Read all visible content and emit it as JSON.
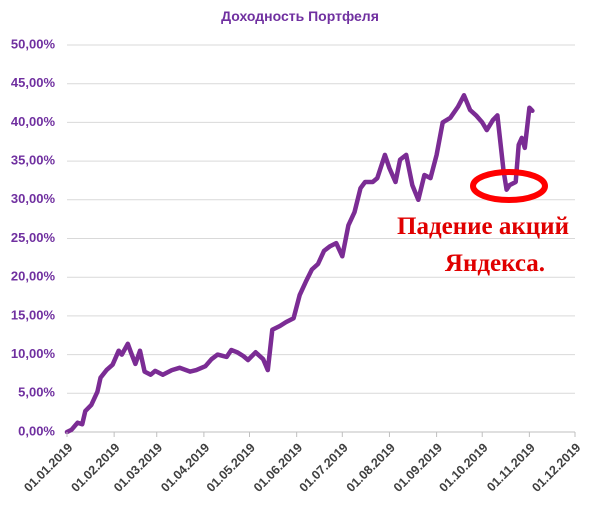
{
  "chart_data": {
    "type": "line",
    "title": "Доходность Портфеля",
    "x": [
      "01.01.2019",
      "04.01.2019",
      "08.01.2019",
      "11.01.2019",
      "13.01.2019",
      "17.01.2019",
      "21.01.2019",
      "23.01.2019",
      "27.01.2019",
      "31.01.2019",
      "04.02.2019",
      "06.02.2019",
      "10.02.2019",
      "12.02.2019",
      "15.02.2019",
      "18.02.2019",
      "21.02.2019",
      "25.02.2019",
      "28.02.2019",
      "05.03.2019",
      "11.03.2019",
      "16.03.2019",
      "23.03.2019",
      "27.03.2019",
      "02.04.2019",
      "06.04.2019",
      "10.04.2019",
      "16.04.2019",
      "19.04.2019",
      "23.04.2019",
      "27.04.2019",
      "30.04.2019",
      "05.05.2019",
      "10.05.2019",
      "13.05.2019",
      "16.05.2019",
      "21.05.2019",
      "25.05.2019",
      "30.05.2019",
      "03.06.2019",
      "07.06.2019",
      "11.06.2019",
      "15.06.2019",
      "19.06.2019",
      "23.06.2019",
      "27.06.2019",
      "01.07.2019",
      "05.07.2019",
      "09.07.2019",
      "13.07.2019",
      "16.07.2019",
      "21.07.2019",
      "24.07.2019",
      "29.07.2019",
      "01.08.2019",
      "05.08.2019",
      "08.08.2019",
      "12.08.2019",
      "16.08.2019",
      "20.08.2019",
      "24.08.2019",
      "28.08.2019",
      "01.09.2019",
      "05.09.2019",
      "10.09.2019",
      "15.09.2019",
      "19.09.2019",
      "23.09.2019",
      "27.09.2019",
      "01.10.2019",
      "04.10.2019",
      "08.10.2019",
      "11.10.2019",
      "15.10.2019",
      "17.10.2019",
      "19.10.2019",
      "23.10.2019",
      "25.10.2019",
      "27.10.2019",
      "29.10.2019",
      "01.11.2019",
      "03.11.2019"
    ],
    "series": [
      {
        "name": "Доходность Портфеля",
        "color": "#7b2c94",
        "values": [
          0,
          0.3,
          1.2,
          1.0,
          2.7,
          3.5,
          5.2,
          7.0,
          8.0,
          8.7,
          10.5,
          10.0,
          11.4,
          10.3,
          8.8,
          10.5,
          7.8,
          7.4,
          7.9,
          7.4,
          8.0,
          8.3,
          7.8,
          8.0,
          8.5,
          9.4,
          10.0,
          9.7,
          10.6,
          10.3,
          9.8,
          9.3,
          10.3,
          9.4,
          8.0,
          13.2,
          13.7,
          14.2,
          14.7,
          17.7,
          19.4,
          21.0,
          21.7,
          23.4,
          24.0,
          24.4,
          22.7,
          26.7,
          28.4,
          31.5,
          32.3,
          32.3,
          32.8,
          35.8,
          34.1,
          32.3,
          35.2,
          35.8,
          31.9,
          30.0,
          33.2,
          32.8,
          35.8,
          40.0,
          40.6,
          42.0,
          43.5,
          41.6,
          40.9,
          40.0,
          39.0,
          40.3,
          40.9,
          33.8,
          31.3,
          31.9,
          32.3,
          37.1,
          38.0,
          36.7,
          41.9,
          41.5
        ]
      }
    ],
    "xlim": [
      "01.01.2019",
      "01.12.2019"
    ],
    "xticks": [
      "01.01.2019",
      "01.02.2019",
      "01.03.2019",
      "01.04.2019",
      "01.05.2019",
      "01.06.2019",
      "01.07.2019",
      "01.08.2019",
      "01.09.2019",
      "01.10.2019",
      "01.11.2019",
      "01.12.2019"
    ],
    "ylim": [
      0,
      50
    ],
    "yticks": [
      {
        "value": 0,
        "label": "0,00%"
      },
      {
        "value": 5,
        "label": "5,00%"
      },
      {
        "value": 10,
        "label": "10,00%"
      },
      {
        "value": 15,
        "label": "15,00%"
      },
      {
        "value": 20,
        "label": "20,00%"
      },
      {
        "value": 25,
        "label": "25,00%"
      },
      {
        "value": 30,
        "label": "30,00%"
      },
      {
        "value": 35,
        "label": "35,00%"
      },
      {
        "value": 40,
        "label": "40,00%"
      },
      {
        "value": 45,
        "label": "45,00%"
      },
      {
        "value": 50,
        "label": "50,00%"
      }
    ],
    "grid": true,
    "annotations": [
      "Падение акций",
      "Яндекса."
    ]
  }
}
